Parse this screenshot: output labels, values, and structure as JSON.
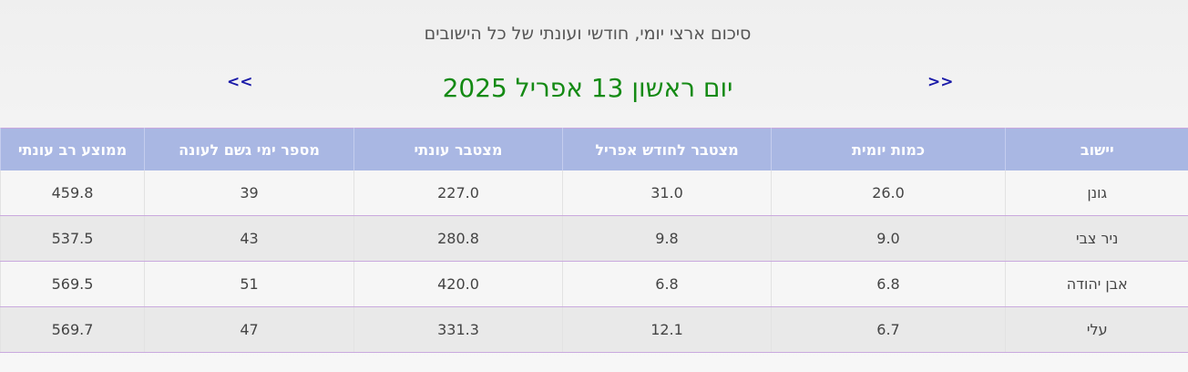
{
  "header": {
    "subtitle": "סיכום ארצי יומי, חודשי ועונתי של כל הישובים",
    "date_title": "יום ראשון 13 אפריל 2025",
    "prev_label": "<<",
    "next_label": ">>"
  },
  "table": {
    "columns": [
      "יישוב",
      "כמות יומית",
      "מצטבר לחודש אפריל",
      "מצטבר עונתי",
      "מספר ימי גשם לעונה",
      "ממוצע רב עונתי"
    ],
    "rows": [
      [
        "גונן",
        "26.0",
        "31.0",
        "227.0",
        "39",
        "459.8"
      ],
      [
        "ניר צבי",
        "9.0",
        "9.8",
        "280.8",
        "43",
        "537.5"
      ],
      [
        "אבן יהודה",
        "6.8",
        "6.8",
        "420.0",
        "51",
        "569.5"
      ],
      [
        "עלי",
        "6.7",
        "12.1",
        "331.3",
        "47",
        "569.7"
      ]
    ]
  },
  "colors": {
    "header_bg": "#a9b7e3",
    "date_title": "#148a14",
    "nav_arrow": "#1a1aa8",
    "row_divider": "#c9a9de"
  }
}
